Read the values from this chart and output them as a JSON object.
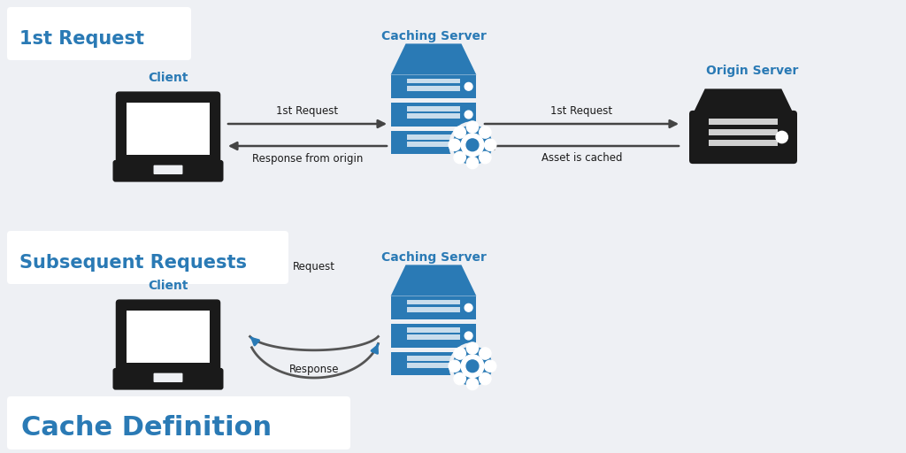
{
  "bg_color": "#eef0f4",
  "white_color": "#ffffff",
  "blue_color": "#2a7ab5",
  "black_color": "#1a1a1a",
  "dark_gray": "#333333",
  "gray_color": "#555555",
  "section1_label": "1st Request",
  "section2_label": "Subsequent Requests",
  "bottom_label": "Cache Definition",
  "client1_label": "Client",
  "client2_label": "Client",
  "cache1_label": "Caching Server",
  "cache2_label": "Caching Server",
  "origin_label": "Origin Server",
  "arr1_label": "1st Request",
  "arr2_label": "Response from origin",
  "arr3_label": "1st Request",
  "arr4_label": "Asset is cached",
  "arr5_label": "Request",
  "arr6_label": "Response",
  "server_blue": "#2a7ab5",
  "server_stripe": "#ffffff"
}
